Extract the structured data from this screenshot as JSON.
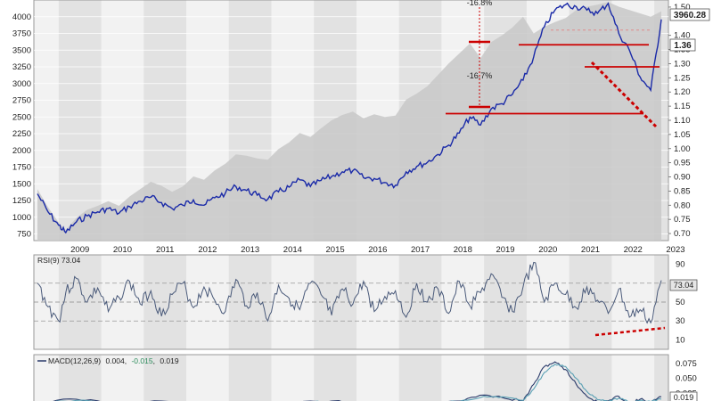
{
  "colors": {
    "main_line": "#1a2aa8",
    "shadow_area": "#c8c8c8",
    "rsi_line": "#4a5a7a",
    "rsi_fill": "#8a96aa",
    "macd_line": "#2a3a6a",
    "signal_line": "#5aa0b4",
    "support_red": "#cc0000",
    "price_badge_bg": "#ffffff",
    "rsi_badge_bg": "#e6e6e6",
    "panel_bg": "#f2f2f2",
    "band_dark": "#e2e2e2"
  },
  "chart_data": [
    {
      "type": "line",
      "panel": "price",
      "x": [
        "2008-07",
        "2008-10",
        "2009-01",
        "2009-03",
        "2009-06",
        "2009-09",
        "2009-12",
        "2010-03",
        "2010-06",
        "2010-09",
        "2010-12",
        "2011-03",
        "2011-06",
        "2011-09",
        "2011-12",
        "2012-03",
        "2012-06",
        "2012-09",
        "2012-12",
        "2013-03",
        "2013-06",
        "2013-09",
        "2013-12",
        "2014-03",
        "2014-06",
        "2014-09",
        "2014-12",
        "2015-03",
        "2015-06",
        "2015-09",
        "2015-12",
        "2016-03",
        "2016-06",
        "2016-09",
        "2016-12",
        "2017-03",
        "2017-06",
        "2017-09",
        "2017-12",
        "2018-03",
        "2018-06",
        "2018-09",
        "2018-12",
        "2019-03",
        "2019-06",
        "2019-09",
        "2019-12",
        "2020-03",
        "2020-06",
        "2020-09",
        "2020-12",
        "2021-03",
        "2021-06",
        "2021-09",
        "2021-12",
        "2022-03",
        "2022-06",
        "2022-09",
        "2022-12",
        "2023-03"
      ],
      "y": [
        1350,
        1080,
        880,
        770,
        930,
        1020,
        1080,
        1130,
        1060,
        1160,
        1240,
        1300,
        1220,
        1130,
        1180,
        1260,
        1180,
        1290,
        1360,
        1460,
        1400,
        1330,
        1270,
        1380,
        1450,
        1560,
        1460,
        1550,
        1610,
        1680,
        1700,
        1590,
        1580,
        1520,
        1480,
        1680,
        1760,
        1820,
        1940,
        2080,
        2260,
        2500,
        2380,
        2620,
        2700,
        2840,
        3050,
        3400,
        3850,
        4100,
        4180,
        4150,
        4100,
        4050,
        4200,
        3750,
        3500,
        3100,
        2900,
        3960
      ],
      "shadow_series": {
        "y": [
          1420,
          1150,
          920,
          810,
          990,
          1110,
          1170,
          1240,
          1170,
          1310,
          1420,
          1530,
          1470,
          1380,
          1460,
          1610,
          1560,
          1700,
          1800,
          1940,
          1920,
          1880,
          1860,
          2020,
          2120,
          2260,
          2200,
          2330,
          2450,
          2530,
          2580,
          2480,
          2540,
          2500,
          2520,
          2760,
          2850,
          2960,
          3130,
          3300,
          3450,
          3600,
          3380,
          3620,
          3720,
          3840,
          4000,
          3750,
          3850,
          3920,
          3980,
          4100,
          4150,
          4180,
          4220,
          4150,
          4100,
          4050,
          4000,
          4080
        ]
      },
      "y_ticks_left": [
        "4000",
        "3750",
        "3500",
        "3250",
        "3000",
        "2750",
        "2500",
        "2250",
        "2000",
        "1750",
        "1500",
        "1250",
        "1000",
        "750"
      ],
      "y_ticks_right": [
        "1.50",
        "1.40",
        "1.35",
        "1.30",
        "1.25",
        "1.20",
        "1.15",
        "1.10",
        "1.05",
        "1.00",
        "0.95",
        "0.90",
        "0.85",
        "0.80",
        "0.75",
        "0.70"
      ],
      "x_ticks": [
        "2009",
        "2010",
        "2011",
        "2012",
        "2013",
        "2014",
        "2015",
        "2016",
        "2017",
        "2018",
        "2019",
        "2020",
        "2021",
        "2022",
        "2023"
      ],
      "ylim": [
        650,
        4250
      ],
      "right_ylim": [
        0.675,
        1.525
      ],
      "last_price_label": "3960.28",
      "last_ratio_label": "1.36",
      "annotations": [
        "-16.8%",
        "-16.7%"
      ],
      "support_levels": [
        3580,
        3250,
        2550
      ],
      "resistance_dashed": 3800
    },
    {
      "type": "line",
      "panel": "rsi",
      "title": "RSI(9) 73.04",
      "last_value_label": "73.04",
      "y_ticks": [
        "90",
        "70",
        "50",
        "30",
        "10"
      ],
      "ylim": [
        0,
        100
      ],
      "reference_lines": [
        70,
        50,
        30
      ],
      "x": [
        "2008-07",
        "2008-10",
        "2009-01",
        "2009-03",
        "2009-06",
        "2009-09",
        "2009-12",
        "2010-03",
        "2010-06",
        "2010-09",
        "2010-12",
        "2011-03",
        "2011-06",
        "2011-09",
        "2011-12",
        "2012-03",
        "2012-06",
        "2012-09",
        "2012-12",
        "2013-03",
        "2013-06",
        "2013-09",
        "2013-12",
        "2014-03",
        "2014-06",
        "2014-09",
        "2014-12",
        "2015-03",
        "2015-06",
        "2015-09",
        "2015-12",
        "2016-03",
        "2016-06",
        "2016-09",
        "2016-12",
        "2017-03",
        "2017-06",
        "2017-09",
        "2017-12",
        "2018-03",
        "2018-06",
        "2018-09",
        "2018-12",
        "2019-03",
        "2019-06",
        "2019-09",
        "2019-12",
        "2020-03",
        "2020-06",
        "2020-09",
        "2020-12",
        "2021-03",
        "2021-06",
        "2021-09",
        "2021-12",
        "2022-03",
        "2022-06",
        "2022-09",
        "2022-12",
        "2023-03"
      ],
      "y": [
        70,
        45,
        30,
        60,
        75,
        50,
        65,
        40,
        55,
        72,
        48,
        62,
        35,
        58,
        70,
        44,
        66,
        52,
        40,
        74,
        46,
        60,
        30,
        68,
        54,
        42,
        70,
        58,
        36,
        64,
        48,
        72,
        40,
        56,
        62,
        34,
        70,
        50,
        64,
        38,
        72,
        46,
        60,
        80,
        55,
        40,
        66,
        92,
        50,
        70,
        58,
        44,
        66,
        52,
        38,
        64,
        34,
        42,
        28,
        73
      ]
    },
    {
      "type": "line",
      "panel": "macd",
      "title": "MACD(12,26,9) 0.004, -0.015, 0.019",
      "title_parts": [
        "MACD(12,26,9)",
        "0.004",
        "-0.015",
        "0.019"
      ],
      "last_value_label": "0.019",
      "y_ticks": [
        "0.075",
        "0.050",
        "0.025"
      ],
      "ylim": [
        0.0,
        0.09
      ],
      "x": [
        "2008-07",
        "2009-06",
        "2010-06",
        "2011-06",
        "2012-06",
        "2013-06",
        "2014-06",
        "2015-06",
        "2016-06",
        "2017-06",
        "2018-06",
        "2019-01",
        "2019-06",
        "2019-12",
        "2020-03",
        "2020-06",
        "2020-09",
        "2020-12",
        "2021-03",
        "2021-06",
        "2021-09",
        "2021-12",
        "2022-03",
        "2022-06",
        "2022-09",
        "2022-12",
        "2023-03"
      ],
      "macd": [
        0.01,
        0.015,
        0.008,
        0.012,
        0.006,
        0.01,
        0.008,
        0.012,
        0.005,
        0.01,
        0.012,
        0.022,
        0.018,
        0.012,
        0.04,
        0.07,
        0.078,
        0.065,
        0.04,
        0.02,
        0.01,
        0.012,
        0.02,
        0.008,
        0.015,
        0.01,
        0.019
      ],
      "signal": [
        0.008,
        0.013,
        0.009,
        0.011,
        0.007,
        0.009,
        0.009,
        0.011,
        0.006,
        0.009,
        0.011,
        0.02,
        0.019,
        0.013,
        0.032,
        0.06,
        0.074,
        0.07,
        0.05,
        0.028,
        0.014,
        0.011,
        0.017,
        0.01,
        0.013,
        0.011,
        0.015
      ]
    }
  ]
}
